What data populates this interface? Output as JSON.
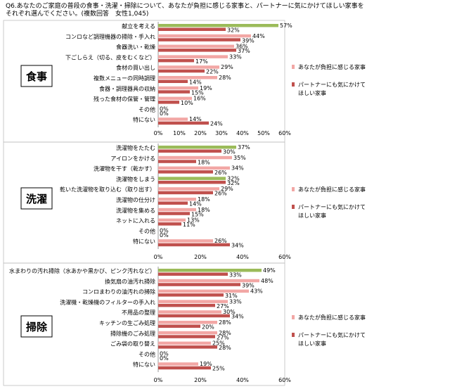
{
  "question": {
    "line1": "Q6.あなたのご家庭の普段の食事・洗濯・掃除について、あなたが負担に感じる家事と、パートナーに気にかけてほしい家事を",
    "line2": "それぞれ選んでください。(複数回答　女性1,045)"
  },
  "colors": {
    "burden": "#c0504d",
    "partner": "#f2a7a5",
    "highlight": "#9bbb59"
  },
  "chart_data": [
    {
      "type": "bar",
      "section_label": "食事",
      "categories": [
        "献立を考える",
        "コンロなど調理機器の掃除・手入れ",
        "食器洗い・乾燥",
        "下ごしらえ（切る、皮をむくなど）",
        "食材の買い出し",
        "複数メニューの同時調理",
        "食器・調理器具の収納",
        "残った食材の保管・管理",
        "その他",
        "特にない"
      ],
      "series": [
        {
          "name": "あなたが負担に感じる家事",
          "values": [
            57,
            44,
            36,
            33,
            29,
            28,
            19,
            16,
            0,
            14
          ]
        },
        {
          "name": "パートナーにも気にかけてほしい家事",
          "values": [
            32,
            39,
            37,
            17,
            22,
            14,
            15,
            10,
            0,
            24
          ]
        }
      ],
      "highlight_index": 0,
      "xlim": [
        0,
        60
      ],
      "ticks": [
        "0%",
        "10%",
        "20%",
        "30%",
        "40%",
        "50%",
        "60%"
      ]
    },
    {
      "type": "bar",
      "section_label": "洗濯",
      "categories": [
        "洗濯物をたたむ",
        "アイロンをかける",
        "洗濯物を干す（乾かす）",
        "洗濯物をしまう",
        "乾いた洗濯物を取り込む（取り出す）",
        "洗濯物の仕分け",
        "洗濯物を集める",
        "ネットに入れる",
        "その他",
        "特にない"
      ],
      "series": [
        {
          "name": "あなたが負担に感じる家事",
          "values": [
            37,
            35,
            34,
            32,
            29,
            18,
            18,
            13,
            0,
            26
          ]
        },
        {
          "name": "パートナーにも気にかけてほしい家事",
          "values": [
            30,
            18,
            26,
            32,
            26,
            14,
            15,
            11,
            0,
            34
          ]
        }
      ],
      "highlight_index": [
        0,
        3
      ],
      "xlim": [
        0,
        60
      ],
      "ticks": [
        "0%",
        "20%",
        "40%",
        "60%"
      ]
    },
    {
      "type": "bar",
      "section_label": "掃除",
      "categories": [
        "水まわりの汚れ掃除（水あかや黒かび、ピンク汚れなど）",
        "換気扇の油汚れ掃除",
        "コンロまわりの油汚れの掃除",
        "洗濯機・乾燥機のフィルターの手入れ",
        "不用品の整理",
        "キッチンの生ごみ処理",
        "掃除機のごみ処理",
        "ごみ袋の取り替え",
        "その他",
        "特にない"
      ],
      "series": [
        {
          "name": "あなたが負担に感じる家事",
          "values": [
            49,
            48,
            43,
            33,
            30,
            28,
            28,
            25,
            0,
            19
          ]
        },
        {
          "name": "パートナーにも気にかけてほしい家事",
          "values": [
            33,
            39,
            31,
            27,
            34,
            20,
            27,
            28,
            0,
            25
          ]
        }
      ],
      "highlight_index": 0,
      "xlim": [
        0,
        60
      ],
      "ticks": [
        "0%",
        "20%",
        "40%",
        "60%"
      ]
    }
  ],
  "legend": {
    "burden_label": "あなたが負担に感じる家事",
    "partner_line1": "パートナーにも気にかけて",
    "partner_line2": "ほしい家事"
  }
}
